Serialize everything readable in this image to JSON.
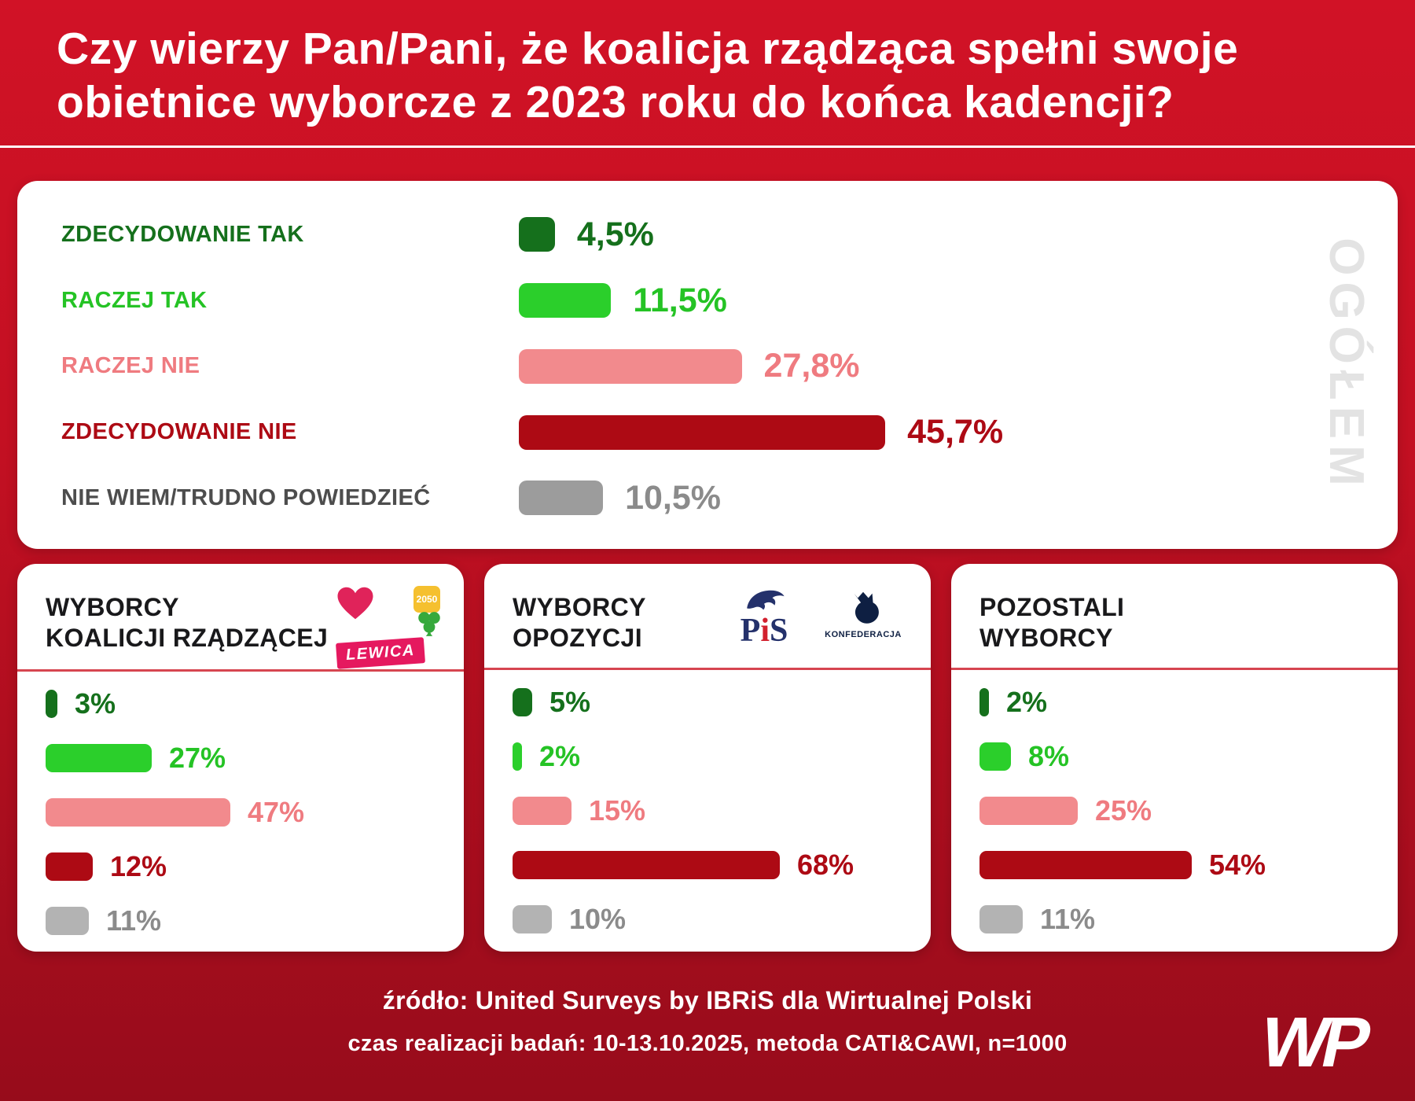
{
  "title": "Czy wierzy Pan/Pani, że koalicja rządząca spełni swoje\nobietnice wyborcze z 2023 roku do końca kadencji?",
  "chart_data": [
    {
      "id": "ogolem",
      "type": "bar",
      "orientation": "horizontal",
      "title": "OGÓŁEM",
      "categories": [
        "ZDECYDOWANIE TAK",
        "RACZEJ TAK",
        "RACZEJ NIE",
        "ZDECYDOWANIE NIE",
        "NIE WIEM/TRUDNO POWIEDZIEĆ"
      ],
      "values": [
        4.5,
        11.5,
        27.8,
        45.7,
        10.5
      ],
      "value_labels": [
        "4,5%",
        "11,5%",
        "27,8%",
        "45,7%",
        "10,5%"
      ],
      "colors": [
        "#15701c",
        "#2bcf2b",
        "#f28a8d",
        "#ad0a14",
        "#9c9c9c"
      ],
      "label_colors": [
        "#15701c",
        "#25c325",
        "#ef7b80",
        "#ad0a14",
        "#4d4d4d"
      ],
      "value_colors": [
        "#15701c",
        "#25c325",
        "#ef7b80",
        "#ad0a14",
        "#8b8b8b"
      ],
      "xlim": [
        0,
        50
      ],
      "show_category_labels": true
    },
    {
      "id": "koalicja",
      "type": "bar",
      "orientation": "horizontal",
      "title": "WYBORCY\nKOALICJI RZĄDZĄCEJ",
      "categories": [
        "ZDECYDOWANIE TAK",
        "RACZEJ TAK",
        "RACZEJ NIE",
        "ZDECYDOWANIE NIE",
        "NIE WIEM/TRUDNO POWIEDZIEĆ"
      ],
      "values": [
        3,
        27,
        47,
        12,
        11
      ],
      "value_labels": [
        "3%",
        "27%",
        "47%",
        "12%",
        "11%"
      ],
      "colors": [
        "#15701c",
        "#2bcf2b",
        "#f28a8d",
        "#ad0a14",
        "#b3b3b3"
      ],
      "value_colors": [
        "#15701c",
        "#25c325",
        "#ef7b80",
        "#ad0a14",
        "#8b8b8b"
      ],
      "xlim": [
        0,
        70
      ],
      "show_category_labels": false
    },
    {
      "id": "opozycja",
      "type": "bar",
      "orientation": "horizontal",
      "title": "WYBORCY\nOPOZYCJI",
      "categories": [
        "ZDECYDOWANIE TAK",
        "RACZEJ TAK",
        "RACZEJ NIE",
        "ZDECYDOWANIE NIE",
        "NIE WIEM/TRUDNO POWIEDZIEĆ"
      ],
      "values": [
        5,
        2,
        15,
        68,
        10
      ],
      "value_labels": [
        "5%",
        "2%",
        "15%",
        "68%",
        "10%"
      ],
      "colors": [
        "#15701c",
        "#2bcf2b",
        "#f28a8d",
        "#ad0a14",
        "#b3b3b3"
      ],
      "value_colors": [
        "#15701c",
        "#25c325",
        "#ef7b80",
        "#ad0a14",
        "#8b8b8b"
      ],
      "xlim": [
        0,
        70
      ],
      "show_category_labels": false
    },
    {
      "id": "pozostali",
      "type": "bar",
      "orientation": "horizontal",
      "title": "POZOSTALI\nWYBORCY",
      "categories": [
        "ZDECYDOWANIE TAK",
        "RACZEJ TAK",
        "RACZEJ NIE",
        "ZDECYDOWANIE NIE",
        "NIE WIEM/TRUDNO POWIEDZIEĆ"
      ],
      "values": [
        2,
        8,
        25,
        54,
        11
      ],
      "value_labels": [
        "2%",
        "8%",
        "25%",
        "54%",
        "11%"
      ],
      "colors": [
        "#15701c",
        "#2bcf2b",
        "#f28a8d",
        "#ad0a14",
        "#b3b3b3"
      ],
      "value_colors": [
        "#15701c",
        "#25c325",
        "#ef7b80",
        "#ad0a14",
        "#8b8b8b"
      ],
      "xlim": [
        0,
        70
      ],
      "show_category_labels": false
    }
  ],
  "logos": {
    "pis_text": "PiS",
    "konfederacja": "KONFEDERACJA",
    "lewica": "LEWICA",
    "p2050": "2050"
  },
  "footer": {
    "source": "źródło: United Surveys by IBRiS dla Wirtualnej Polski",
    "details": "czas realizacji badań: 10-13.10.2025, metoda CATI&CAWI, n=1000"
  },
  "wp_logo": "WP"
}
